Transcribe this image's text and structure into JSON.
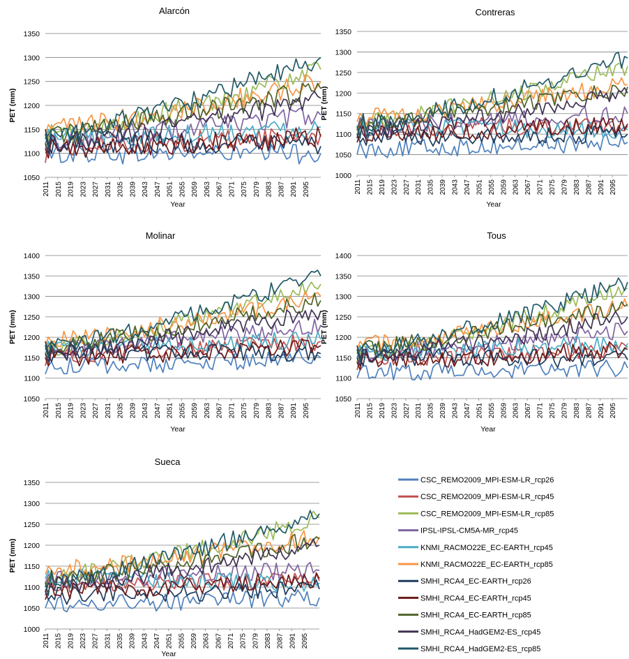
{
  "figure": {
    "series_names": [
      "CSC_REMO2009_MPI-ESM-LR_rcp26",
      "CSC_REMO2009_MPI-ESM-LR_rcp45",
      "CSC_REMO2009_MPI-ESM-LR_rcp85",
      "IPSL-IPSL-CM5A-MR_rcp45",
      "KNMI_RACMO22E_EC-EARTH_rcp45",
      "KNMI_RACMO22E_EC-EARTH_rcp85",
      "SMHI_RCA4_EC-EARTH_rcp26",
      "SMHI_RCA4_EC-EARTH_rcp45",
      "SMHI_RCA4_EC-EARTH_rcp85",
      "SMHI_RCA4_HadGEM2-ES_rcp45",
      "SMHI_RCA4_HadGEM2-ES_rcp85"
    ],
    "series_colors": [
      "#4f81bd",
      "#c0504d",
      "#9bbb59",
      "#8064a2",
      "#4bacc6",
      "#f79646",
      "#1f3b5c",
      "#6b1a1a",
      "#4f6228",
      "#3f3151",
      "#215968"
    ],
    "x_ticks": [
      "2011",
      "2015",
      "2019",
      "2023",
      "2027",
      "2031",
      "2035",
      "2039",
      "2043",
      "2047",
      "2051",
      "2055",
      "2059",
      "2063",
      "2067",
      "2071",
      "2075",
      "2079",
      "2083",
      "2087",
      "2091",
      "2095"
    ],
    "x_range": [
      2011,
      2100
    ]
  },
  "chart_data": [
    {
      "type": "line",
      "title": "Alarcón",
      "xlabel": "Year",
      "ylabel": "PET (mm)",
      "ylim": [
        1050,
        1350
      ],
      "yticks": [
        "1050",
        "1100",
        "1150",
        "1200",
        "1250",
        "1300",
        "1350"
      ],
      "grid": true,
      "series_start": [
        {
          "name": "CSC_REMO2009_MPI-ESM-LR_rcp26",
          "values": [
            1100,
            1110,
            1090
          ]
        },
        {
          "name": "CSC_REMO2009_MPI-ESM-LR_rcp45",
          "values": [
            1080,
            1120,
            1140
          ]
        },
        {
          "name": "CSC_REMO2009_MPI-ESM-LR_rcp85",
          "values": [
            1110,
            1130,
            1160
          ]
        },
        {
          "name": "IPSL-IPSL-CM5A-MR_rcp45",
          "values": [
            1120,
            1140,
            1130
          ]
        },
        {
          "name": "KNMI_RACMO22E_EC-EARTH_rcp45",
          "values": [
            1130,
            1150,
            1120
          ]
        },
        {
          "name": "KNMI_RACMO22E_EC-EARTH_rcp85",
          "values": [
            1140,
            1160,
            1150
          ]
        },
        {
          "name": "SMHI_RCA4_EC-EARTH_rcp26",
          "values": [
            1150,
            1120,
            1100
          ]
        },
        {
          "name": "SMHI_RCA4_EC-EARTH_rcp45",
          "values": [
            1110,
            1090,
            1130
          ]
        },
        {
          "name": "SMHI_RCA4_EC-EARTH_rcp85",
          "values": [
            1130,
            1140,
            1150
          ]
        },
        {
          "name": "SMHI_RCA4_HadGEM2-ES_rcp45",
          "values": [
            1120,
            1100,
            1140
          ]
        },
        {
          "name": "SMHI_RCA4_HadGEM2-ES_rcp85",
          "values": [
            1140,
            1110,
            1150
          ]
        }
      ],
      "series_end": [
        1100,
        1140,
        1275,
        1180,
        1155,
        1250,
        1115,
        1135,
        1235,
        1215,
        1300
      ]
    },
    {
      "type": "line",
      "title": "Contreras",
      "xlabel": "Year",
      "ylabel": "PET (mm)",
      "ylim": [
        1000,
        1350
      ],
      "yticks": [
        "1000",
        "1050",
        "1100",
        "1150",
        "1200",
        "1250",
        "1300",
        "1350"
      ],
      "grid": true,
      "series_start": [
        {
          "name": "CSC_REMO2009_MPI-ESM-LR_rcp26",
          "values": [
            1050,
            1080,
            1060
          ]
        },
        {
          "name": "CSC_REMO2009_MPI-ESM-LR_rcp45",
          "values": [
            1090,
            1120,
            1140
          ]
        },
        {
          "name": "CSC_REMO2009_MPI-ESM-LR_rcp85",
          "values": [
            1100,
            1130,
            1150
          ]
        },
        {
          "name": "IPSL-IPSL-CM5A-MR_rcp45",
          "values": [
            1110,
            1140,
            1120
          ]
        },
        {
          "name": "KNMI_RACMO22E_EC-EARTH_rcp45",
          "values": [
            1120,
            1100,
            1130
          ]
        },
        {
          "name": "KNMI_RACMO22E_EC-EARTH_rcp85",
          "values": [
            1130,
            1150,
            1140
          ]
        },
        {
          "name": "SMHI_RCA4_EC-EARTH_rcp26",
          "values": [
            1100,
            1080,
            1090
          ]
        },
        {
          "name": "SMHI_RCA4_EC-EARTH_rcp45",
          "values": [
            1080,
            1100,
            1120
          ]
        },
        {
          "name": "SMHI_RCA4_EC-EARTH_rcp85",
          "values": [
            1110,
            1130,
            1140
          ]
        },
        {
          "name": "SMHI_RCA4_HadGEM2-ES_rcp45",
          "values": [
            1090,
            1120,
            1100
          ]
        },
        {
          "name": "SMHI_RCA4_HadGEM2-ES_rcp85",
          "values": [
            1120,
            1090,
            1150
          ]
        }
      ],
      "series_end": [
        1080,
        1120,
        1265,
        1150,
        1110,
        1220,
        1100,
        1125,
        1215,
        1200,
        1285
      ]
    },
    {
      "type": "line",
      "title": "Molinar",
      "xlabel": "Year",
      "ylabel": "PET (mm)",
      "ylim": [
        1050,
        1400
      ],
      "yticks": [
        "1050",
        "1100",
        "1150",
        "1200",
        "1250",
        "1300",
        "1350",
        "1400"
      ],
      "grid": true,
      "series_start": [
        {
          "name": "CSC_REMO2009_MPI-ESM-LR_rcp26",
          "values": [
            1110,
            1130,
            1140
          ]
        },
        {
          "name": "CSC_REMO2009_MPI-ESM-LR_rcp45",
          "values": [
            1130,
            1160,
            1180
          ]
        },
        {
          "name": "CSC_REMO2009_MPI-ESM-LR_rcp85",
          "values": [
            1150,
            1170,
            1190
          ]
        },
        {
          "name": "IPSL-IPSL-CM5A-MR_rcp45",
          "values": [
            1160,
            1180,
            1170
          ]
        },
        {
          "name": "KNMI_RACMO22E_EC-EARTH_rcp45",
          "values": [
            1170,
            1190,
            1160
          ]
        },
        {
          "name": "KNMI_RACMO22E_EC-EARTH_rcp85",
          "values": [
            1180,
            1200,
            1190
          ]
        },
        {
          "name": "SMHI_RCA4_EC-EARTH_rcp26",
          "values": [
            1190,
            1160,
            1140
          ]
        },
        {
          "name": "SMHI_RCA4_EC-EARTH_rcp45",
          "values": [
            1150,
            1130,
            1170
          ]
        },
        {
          "name": "SMHI_RCA4_EC-EARTH_rcp85",
          "values": [
            1170,
            1180,
            1190
          ]
        },
        {
          "name": "SMHI_RCA4_HadGEM2-ES_rcp45",
          "values": [
            1160,
            1140,
            1180
          ]
        },
        {
          "name": "SMHI_RCA4_HadGEM2-ES_rcp85",
          "values": [
            1180,
            1150,
            1190
          ]
        }
      ],
      "series_end": [
        1150,
        1190,
        1330,
        1230,
        1195,
        1300,
        1160,
        1180,
        1290,
        1265,
        1350
      ]
    },
    {
      "type": "line",
      "title": "Tous",
      "xlabel": "Year",
      "ylabel": "PET (mm)",
      "ylim": [
        1050,
        1400
      ],
      "yticks": [
        "1050",
        "1100",
        "1150",
        "1200",
        "1250",
        "1300",
        "1350",
        "1400"
      ],
      "grid": true,
      "series_start": [
        {
          "name": "CSC_REMO2009_MPI-ESM-LR_rcp26",
          "values": [
            1100,
            1120,
            1130
          ]
        },
        {
          "name": "CSC_REMO2009_MPI-ESM-LR_rcp45",
          "values": [
            1120,
            1150,
            1170
          ]
        },
        {
          "name": "CSC_REMO2009_MPI-ESM-LR_rcp85",
          "values": [
            1140,
            1160,
            1180
          ]
        },
        {
          "name": "IPSL-IPSL-CM5A-MR_rcp45",
          "values": [
            1150,
            1170,
            1160
          ]
        },
        {
          "name": "KNMI_RACMO22E_EC-EARTH_rcp45",
          "values": [
            1160,
            1180,
            1150
          ]
        },
        {
          "name": "KNMI_RACMO22E_EC-EARTH_rcp85",
          "values": [
            1170,
            1190,
            1180
          ]
        },
        {
          "name": "SMHI_RCA4_EC-EARTH_rcp26",
          "values": [
            1180,
            1150,
            1130
          ]
        },
        {
          "name": "SMHI_RCA4_EC-EARTH_rcp45",
          "values": [
            1140,
            1120,
            1160
          ]
        },
        {
          "name": "SMHI_RCA4_EC-EARTH_rcp85",
          "values": [
            1160,
            1170,
            1180
          ]
        },
        {
          "name": "SMHI_RCA4_HadGEM2-ES_rcp45",
          "values": [
            1150,
            1130,
            1170
          ]
        },
        {
          "name": "SMHI_RCA4_HadGEM2-ES_rcp85",
          "values": [
            1170,
            1140,
            1180
          ]
        }
      ],
      "series_end": [
        1125,
        1175,
        1320,
        1215,
        1185,
        1275,
        1145,
        1170,
        1280,
        1250,
        1335
      ]
    },
    {
      "type": "line",
      "title": "Sueca",
      "xlabel": "Year",
      "ylabel": "PET (mm)",
      "ylim": [
        1000,
        1350
      ],
      "yticks": [
        "1000",
        "1050",
        "1100",
        "1150",
        "1200",
        "1250",
        "1300",
        "1350"
      ],
      "grid": true,
      "series_start": [
        {
          "name": "CSC_REMO2009_MPI-ESM-LR_rcp26",
          "values": [
            1050,
            1070,
            1060
          ]
        },
        {
          "name": "CSC_REMO2009_MPI-ESM-LR_rcp45",
          "values": [
            1080,
            1110,
            1130
          ]
        },
        {
          "name": "CSC_REMO2009_MPI-ESM-LR_rcp85",
          "values": [
            1100,
            1120,
            1140
          ]
        },
        {
          "name": "IPSL-IPSL-CM5A-MR_rcp45",
          "values": [
            1110,
            1130,
            1120
          ]
        },
        {
          "name": "KNMI_RACMO22E_EC-EARTH_rcp45",
          "values": [
            1120,
            1140,
            1110
          ]
        },
        {
          "name": "KNMI_RACMO22E_EC-EARTH_rcp85",
          "values": [
            1130,
            1150,
            1140
          ]
        },
        {
          "name": "SMHI_RCA4_EC-EARTH_rcp26",
          "values": [
            1090,
            1070,
            1080
          ]
        },
        {
          "name": "SMHI_RCA4_EC-EARTH_rcp45",
          "values": [
            1070,
            1090,
            1110
          ]
        },
        {
          "name": "SMHI_RCA4_EC-EARTH_rcp85",
          "values": [
            1100,
            1120,
            1130
          ]
        },
        {
          "name": "SMHI_RCA4_HadGEM2-ES_rcp45",
          "values": [
            1090,
            1110,
            1100
          ]
        },
        {
          "name": "SMHI_RCA4_HadGEM2-ES_rcp85",
          "values": [
            1110,
            1080,
            1140
          ]
        }
      ],
      "series_end": [
        1075,
        1115,
        1265,
        1140,
        1110,
        1220,
        1095,
        1120,
        1215,
        1200,
        1275
      ]
    }
  ]
}
